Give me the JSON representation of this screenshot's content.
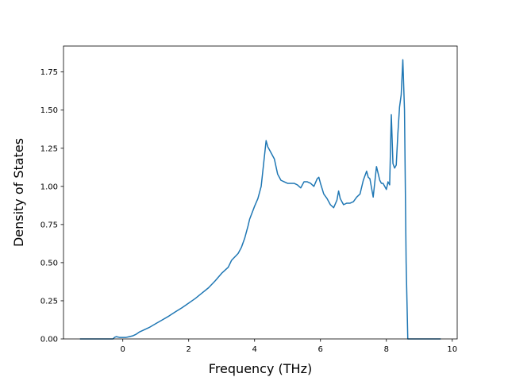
{
  "chart_data": {
    "type": "line",
    "xlabel": "Frequency (THz)",
    "ylabel": "Density of States",
    "xlim": [
      -1.8,
      10.15
    ],
    "ylim": [
      0.0,
      1.92
    ],
    "grid": false,
    "x_ticks": [
      0,
      2,
      4,
      6,
      8,
      10
    ],
    "x_tick_labels": [
      "0",
      "2",
      "4",
      "6",
      "8",
      "10"
    ],
    "y_ticks": [
      0.0,
      0.25,
      0.5,
      0.75,
      1.0,
      1.25,
      1.5,
      1.75
    ],
    "y_tick_labels": [
      "0.00",
      "0.25",
      "0.50",
      "0.75",
      "1.00",
      "1.25",
      "1.50",
      "1.75"
    ],
    "line_color": "#1f77b4",
    "series": [
      {
        "x": [
          -1.3,
          -0.5,
          -0.3,
          -0.25,
          -0.2,
          -0.1,
          0.0,
          0.1,
          0.2,
          0.3,
          0.4,
          0.5,
          0.6,
          0.8,
          1.0,
          1.2,
          1.4,
          1.6,
          1.8,
          2.0,
          2.2,
          2.4,
          2.6,
          2.8,
          3.0,
          3.2,
          3.3,
          3.5,
          3.6,
          3.7,
          3.8,
          3.85,
          4.0,
          4.1,
          4.2,
          4.3,
          4.35,
          4.4,
          4.5,
          4.6,
          4.7,
          4.75,
          4.8,
          4.9,
          5.0,
          5.1,
          5.2,
          5.3,
          5.4,
          5.5,
          5.6,
          5.7,
          5.8,
          5.9,
          5.95,
          6.0,
          6.1,
          6.2,
          6.3,
          6.4,
          6.5,
          6.55,
          6.6,
          6.7,
          6.8,
          6.9,
          7.0,
          7.1,
          7.2,
          7.3,
          7.4,
          7.45,
          7.5,
          7.6,
          7.7,
          7.8,
          7.85,
          7.9,
          8.0,
          8.05,
          8.1,
          8.15,
          8.2,
          8.25,
          8.3,
          8.35,
          8.4,
          8.45,
          8.5,
          8.55,
          8.6,
          8.65,
          8.7,
          8.75,
          8.8,
          9.0,
          9.5,
          9.65
        ],
        "y": [
          0.0,
          0.0,
          0.0,
          0.01,
          0.015,
          0.01,
          0.01,
          0.01,
          0.015,
          0.02,
          0.03,
          0.045,
          0.055,
          0.075,
          0.1,
          0.125,
          0.15,
          0.178,
          0.205,
          0.235,
          0.265,
          0.3,
          0.335,
          0.38,
          0.43,
          0.47,
          0.515,
          0.56,
          0.6,
          0.66,
          0.74,
          0.785,
          0.87,
          0.92,
          1.0,
          1.2,
          1.3,
          1.26,
          1.22,
          1.18,
          1.08,
          1.06,
          1.04,
          1.03,
          1.02,
          1.02,
          1.02,
          1.01,
          0.99,
          1.03,
          1.03,
          1.02,
          1.0,
          1.05,
          1.06,
          1.02,
          0.95,
          0.92,
          0.88,
          0.86,
          0.91,
          0.97,
          0.92,
          0.88,
          0.89,
          0.89,
          0.9,
          0.93,
          0.95,
          1.04,
          1.1,
          1.06,
          1.05,
          0.93,
          1.13,
          1.04,
          1.02,
          1.02,
          0.98,
          1.03,
          1.01,
          1.47,
          1.15,
          1.12,
          1.14,
          1.35,
          1.52,
          1.6,
          1.83,
          1.5,
          0.5,
          0.0,
          0.0,
          0.0,
          0.0,
          0.0,
          0.0,
          0.0
        ]
      }
    ]
  }
}
